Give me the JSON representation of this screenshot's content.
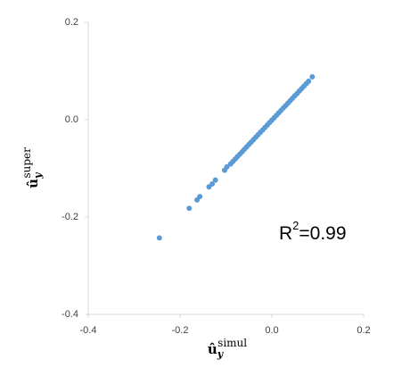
{
  "chart_data": {
    "type": "scatter",
    "x_label": {
      "base": "û",
      "sub": "y",
      "sup": "simul"
    },
    "y_label": {
      "base": "û",
      "sub": "y",
      "sup": "super"
    },
    "annotation": {
      "base": "R",
      "sup": "2",
      "rest": "=0.99"
    },
    "xlim": [
      -0.4,
      0.2
    ],
    "ylim": [
      -0.4,
      0.2
    ],
    "xticks": [
      -0.4,
      -0.2,
      {
        "value": 0,
        "label": "0.0"
      },
      0.2
    ],
    "yticks": [
      -0.4,
      -0.2,
      {
        "value": 0,
        "label": "0.0"
      },
      0.2
    ],
    "color": "#5b9bd5",
    "x": [
      -0.245,
      -0.18,
      -0.163,
      -0.157,
      -0.137,
      -0.13,
      -0.123,
      -0.103,
      -0.098,
      -0.09,
      -0.085,
      -0.08,
      -0.075,
      -0.07,
      -0.065,
      -0.06,
      -0.055,
      -0.05,
      -0.045,
      -0.04,
      -0.035,
      -0.03,
      -0.025,
      -0.02,
      -0.015,
      -0.01,
      -0.005,
      0,
      0.005,
      0.01,
      0.015,
      0.02,
      0.025,
      0.03,
      0.035,
      0.04,
      0.045,
      0.05,
      0.055,
      0.06,
      0.065,
      0.07,
      0.075,
      0.08,
      0.088
    ],
    "y": [
      -0.243,
      -0.182,
      -0.165,
      -0.158,
      -0.138,
      -0.132,
      -0.124,
      -0.104,
      -0.097,
      -0.091,
      -0.086,
      -0.081,
      -0.076,
      -0.071,
      -0.066,
      -0.061,
      -0.056,
      -0.051,
      -0.046,
      -0.041,
      -0.036,
      -0.031,
      -0.026,
      -0.021,
      -0.016,
      -0.011,
      -0.006,
      -0.001,
      0.004,
      0.009,
      0.014,
      0.019,
      0.024,
      0.029,
      0.034,
      0.039,
      0.044,
      0.049,
      0.054,
      0.059,
      0.064,
      0.069,
      0.074,
      0.079,
      0.088
    ]
  }
}
